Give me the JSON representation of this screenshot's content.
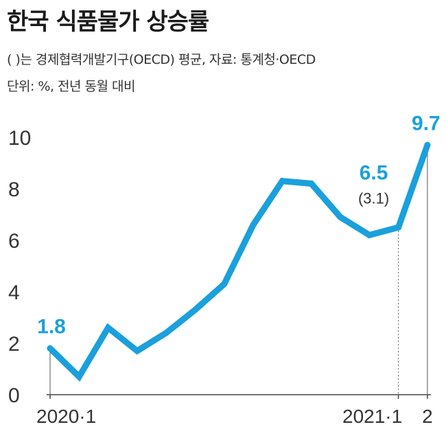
{
  "header": {
    "title": "한국 식품물가 상승률",
    "subtitle_line1": "( )는 경제협력개발기구(OECD) 평균, 자료: 통계청·OECD",
    "subtitle_line2": "단위: %, 전년 동월 대비"
  },
  "colors": {
    "line": "#1aa0dc",
    "text": "#333333"
  },
  "chart_data": {
    "type": "line",
    "title": "한국 식품물가 상승률",
    "xlabel": "",
    "ylabel": "%",
    "ylim": [
      0,
      10
    ],
    "yticks": [
      "0",
      "2",
      "4",
      "6",
      "8",
      "10"
    ],
    "x": [
      0,
      1,
      2,
      3,
      4,
      5,
      6,
      7,
      8,
      9,
      10,
      11,
      12,
      13
    ],
    "xtick_labels": [
      {
        "index": 0,
        "label": "2020·1"
      },
      {
        "index": 12,
        "label": "2021·1"
      },
      {
        "index": 13,
        "label": "2"
      }
    ],
    "series": [
      {
        "name": "한국",
        "values": [
          1.8,
          0.7,
          2.6,
          1.7,
          2.4,
          3.3,
          4.3,
          6.6,
          8.3,
          8.2,
          6.9,
          6.2,
          6.5,
          9.7
        ]
      }
    ],
    "annotations": [
      {
        "index": 0,
        "label": "1.8"
      },
      {
        "index": 12,
        "label": "6.5",
        "oecd": "(3.1)"
      },
      {
        "index": 13,
        "label": "9.7"
      }
    ]
  }
}
